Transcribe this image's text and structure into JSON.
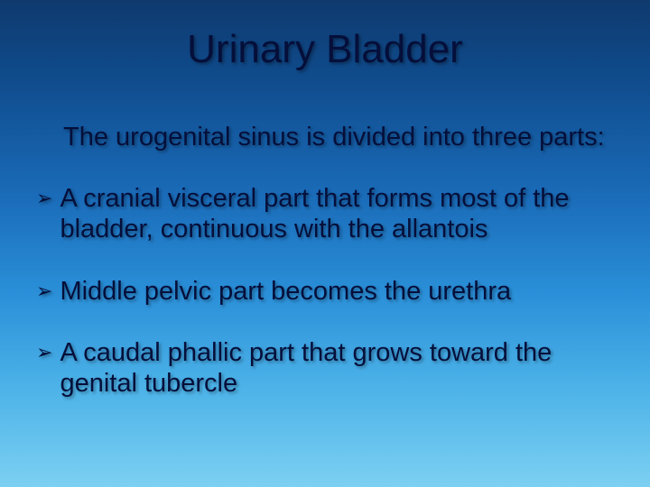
{
  "slide": {
    "title": "Urinary Bladder",
    "intro": "The urogenital sinus is divided into three parts:",
    "bullets": [
      "A cranial visceral part that forms most of the bladder, continuous with the allantois",
      "Middle pelvic part becomes the urethra",
      "A caudal phallic part that grows toward the genital tubercle"
    ],
    "bullet_marker": "➢",
    "colors": {
      "text": "#050f3a",
      "bg_top": "#0f3a6e",
      "bg_bottom": "#7cd0f2"
    },
    "fontsize": {
      "title": 44,
      "body": 29
    }
  }
}
